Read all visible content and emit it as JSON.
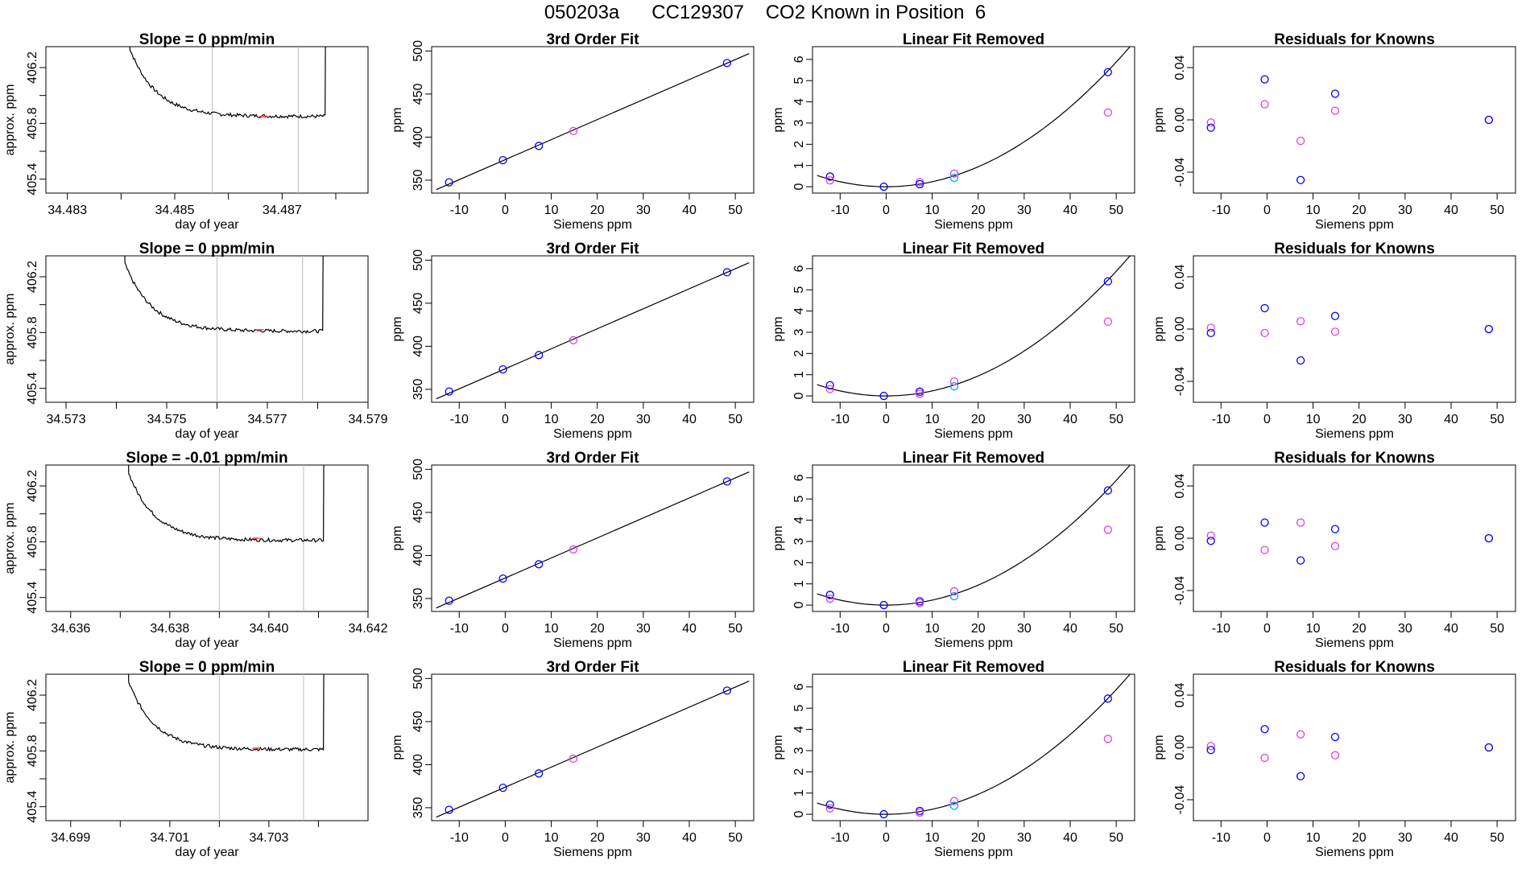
{
  "page": {
    "title": "050203a      CC129307    CO2 Known in Position  6"
  },
  "colors": {
    "axis": "#000000",
    "trace": "#000000",
    "vline": "#bebebe",
    "blue": "#0000ff",
    "magenta": "#e040e0",
    "cyan": "#00aaee",
    "red": "#ff4444"
  },
  "chart_data": [
    {
      "type": "line",
      "row": 0,
      "panel": "trace",
      "title": "Slope =  0  ppm/min",
      "xlabel": "day of year",
      "ylabel": "approx. ppm",
      "xlim": [
        34.4826,
        34.4886
      ],
      "xticks": [
        34.483,
        34.484,
        34.485,
        34.486,
        34.487,
        34.488
      ],
      "xtick_labels": [
        "34.483",
        "",
        "34.485",
        "",
        "34.487",
        ""
      ],
      "ylim": [
        405.3,
        406.35
      ],
      "yticks": [
        405.4,
        405.6,
        405.8,
        406.0,
        406.2
      ],
      "ytick_labels": [
        "405.4",
        "",
        "405.8",
        "",
        "406.2"
      ],
      "level": 405.85,
      "start": 34.4841,
      "end": 34.4878,
      "vlines": [
        34.4857,
        34.4873
      ],
      "red_mark": [
        34.48665,
        405.849
      ]
    },
    {
      "type": "scatter",
      "row": 0,
      "panel": "fit",
      "title": "3rd Order Fit",
      "xlabel": "Siemens ppm",
      "ylabel": "ppm",
      "xlim": [
        -16,
        54
      ],
      "ylim": [
        335,
        505
      ],
      "xticks": [
        -10,
        0,
        10,
        20,
        30,
        40,
        50
      ],
      "yticks": [
        350,
        400,
        450,
        500
      ],
      "fit_line": [
        [
          -15,
          339
        ],
        [
          53,
          497
        ]
      ],
      "points": [
        {
          "x": -12.2,
          "y": 347.5,
          "c": "blue"
        },
        {
          "x": -0.5,
          "y": 373.2,
          "c": "blue"
        },
        {
          "x": 7.3,
          "y": 389.8,
          "c": "blue"
        },
        {
          "x": 14.8,
          "y": 407.0,
          "c": "magenta"
        },
        {
          "x": 48.2,
          "y": 486.0,
          "c": "blue"
        }
      ]
    },
    {
      "type": "scatter",
      "row": 0,
      "panel": "linear",
      "title": "Linear Fit Removed",
      "xlabel": "Siemens ppm",
      "ylabel": "ppm",
      "xlim": [
        -16,
        54
      ],
      "ylim": [
        -0.3,
        6.6
      ],
      "xticks": [
        -10,
        0,
        10,
        20,
        30,
        40,
        50
      ],
      "yticks": [
        0,
        1,
        2,
        3,
        4,
        5,
        6
      ],
      "curve_a": 0.00235,
      "curve_b": 0.0003,
      "curve_x": [
        -15,
        53
      ],
      "points": [
        {
          "x": -12.2,
          "y": 0.48,
          "c": "blue"
        },
        {
          "x": -12.2,
          "y": 0.3,
          "c": "magenta"
        },
        {
          "x": -0.5,
          "y": 0.0,
          "c": "blue"
        },
        {
          "x": 7.3,
          "y": 0.22,
          "c": "magenta"
        },
        {
          "x": 7.3,
          "y": 0.12,
          "c": "blue"
        },
        {
          "x": 14.8,
          "y": 0.62,
          "c": "magenta"
        },
        {
          "x": 14.8,
          "y": 0.42,
          "c": "cyan"
        },
        {
          "x": 48.2,
          "y": 5.4,
          "c": "blue"
        },
        {
          "x": 48.2,
          "y": 3.5,
          "c": "magenta"
        }
      ]
    },
    {
      "type": "scatter",
      "row": 0,
      "panel": "residuals",
      "title": "Residuals for Knowns",
      "xlabel": "Siemens ppm",
      "ylabel": "ppm",
      "xlim": [
        -16,
        54
      ],
      "ylim": [
        -0.056,
        0.056
      ],
      "xticks": [
        -10,
        0,
        10,
        20,
        30,
        40,
        50
      ],
      "yticks": [
        -0.04,
        0.0,
        0.04
      ],
      "ytick_labels": [
        "-0.04",
        "0.00",
        "0.04"
      ],
      "points": [
        {
          "x": -12.2,
          "y": -0.002,
          "c": "magenta"
        },
        {
          "x": -12.2,
          "y": -0.006,
          "c": "blue"
        },
        {
          "x": -0.5,
          "y": 0.031,
          "c": "blue"
        },
        {
          "x": -0.5,
          "y": 0.012,
          "c": "magenta"
        },
        {
          "x": 7.3,
          "y": -0.016,
          "c": "magenta"
        },
        {
          "x": 7.3,
          "y": -0.046,
          "c": "blue"
        },
        {
          "x": 14.8,
          "y": 0.02,
          "c": "blue"
        },
        {
          "x": 14.8,
          "y": 0.007,
          "c": "magenta"
        },
        {
          "x": 48.2,
          "y": 0.0,
          "c": "magenta"
        },
        {
          "x": 48.2,
          "y": 0.0,
          "c": "blue"
        }
      ]
    },
    {
      "type": "line",
      "row": 1,
      "panel": "trace",
      "title": "Slope =  0  ppm/min",
      "xlabel": "day of year",
      "ylabel": "approx. ppm",
      "xlim": [
        34.5726,
        34.579
      ],
      "xticks": [
        34.573,
        34.574,
        34.575,
        34.576,
        34.577,
        34.578,
        34.579
      ],
      "xtick_labels": [
        "34.573",
        "",
        "34.575",
        "",
        "34.577",
        "",
        "34.579"
      ],
      "ylim": [
        405.3,
        406.35
      ],
      "yticks": [
        405.4,
        405.6,
        405.8,
        406.0,
        406.2
      ],
      "ytick_labels": [
        "405.4",
        "",
        "405.8",
        "",
        "406.2"
      ],
      "level": 405.81,
      "start": 34.5741,
      "end": 34.5781,
      "vlines": [
        34.576,
        34.5777
      ],
      "red_mark": [
        34.57685,
        405.82
      ]
    },
    {
      "type": "scatter",
      "row": 1,
      "panel": "fit",
      "title": "3rd Order Fit",
      "xlabel": "Siemens ppm",
      "ylabel": "ppm",
      "xlim": [
        -16,
        54
      ],
      "ylim": [
        335,
        505
      ],
      "xticks": [
        -10,
        0,
        10,
        20,
        30,
        40,
        50
      ],
      "yticks": [
        350,
        400,
        450,
        500
      ],
      "fit_line": [
        [
          -15,
          339
        ],
        [
          53,
          497
        ]
      ],
      "points": [
        {
          "x": -12.2,
          "y": 347.5,
          "c": "blue"
        },
        {
          "x": -0.5,
          "y": 373.2,
          "c": "blue"
        },
        {
          "x": 7.3,
          "y": 389.8,
          "c": "blue"
        },
        {
          "x": 14.8,
          "y": 407.0,
          "c": "magenta"
        },
        {
          "x": 48.2,
          "y": 486.0,
          "c": "blue"
        }
      ]
    },
    {
      "type": "scatter",
      "row": 1,
      "panel": "linear",
      "title": "Linear Fit Removed",
      "xlabel": "Siemens ppm",
      "ylabel": "ppm",
      "xlim": [
        -16,
        54
      ],
      "ylim": [
        -0.3,
        6.6
      ],
      "xticks": [
        -10,
        0,
        10,
        20,
        30,
        40,
        50
      ],
      "yticks": [
        0,
        1,
        2,
        3,
        4,
        5,
        6
      ],
      "curve_a": 0.00235,
      "curve_b": 0.0003,
      "curve_x": [
        -15,
        53
      ],
      "points": [
        {
          "x": -12.2,
          "y": 0.5,
          "c": "blue"
        },
        {
          "x": -12.2,
          "y": 0.32,
          "c": "magenta"
        },
        {
          "x": -0.5,
          "y": 0.0,
          "c": "blue"
        },
        {
          "x": 7.3,
          "y": 0.2,
          "c": "blue"
        },
        {
          "x": 7.3,
          "y": 0.1,
          "c": "magenta"
        },
        {
          "x": 14.8,
          "y": 0.68,
          "c": "magenta"
        },
        {
          "x": 14.8,
          "y": 0.45,
          "c": "cyan"
        },
        {
          "x": 48.2,
          "y": 5.4,
          "c": "blue"
        },
        {
          "x": 48.2,
          "y": 3.5,
          "c": "magenta"
        }
      ]
    },
    {
      "type": "scatter",
      "row": 1,
      "panel": "residuals",
      "title": "Residuals for Knowns",
      "xlabel": "Siemens ppm",
      "ylabel": "ppm",
      "xlim": [
        -16,
        54
      ],
      "ylim": [
        -0.056,
        0.056
      ],
      "xticks": [
        -10,
        0,
        10,
        20,
        30,
        40,
        50
      ],
      "yticks": [
        -0.04,
        0.0,
        0.04
      ],
      "ytick_labels": [
        "-0.04",
        "0.00",
        "0.04"
      ],
      "points": [
        {
          "x": -12.2,
          "y": 0.001,
          "c": "magenta"
        },
        {
          "x": -12.2,
          "y": -0.003,
          "c": "blue"
        },
        {
          "x": -0.5,
          "y": 0.016,
          "c": "blue"
        },
        {
          "x": -0.5,
          "y": -0.003,
          "c": "magenta"
        },
        {
          "x": 7.3,
          "y": 0.006,
          "c": "magenta"
        },
        {
          "x": 7.3,
          "y": -0.024,
          "c": "blue"
        },
        {
          "x": 14.8,
          "y": 0.01,
          "c": "blue"
        },
        {
          "x": 14.8,
          "y": -0.002,
          "c": "magenta"
        },
        {
          "x": 48.2,
          "y": 0.0,
          "c": "magenta"
        },
        {
          "x": 48.2,
          "y": 0.0,
          "c": "blue"
        }
      ]
    },
    {
      "type": "line",
      "row": 2,
      "panel": "trace",
      "title": "Slope =  -0.01  ppm/min",
      "xlabel": "day of year",
      "ylabel": "approx. ppm",
      "xlim": [
        34.6355,
        34.642
      ],
      "xticks": [
        34.636,
        34.637,
        34.638,
        34.639,
        34.64,
        34.641,
        34.642
      ],
      "xtick_labels": [
        "34.636",
        "",
        "34.638",
        "",
        "34.640",
        "",
        "34.642"
      ],
      "ylim": [
        405.3,
        406.35
      ],
      "yticks": [
        405.4,
        405.6,
        405.8,
        406.0,
        406.2
      ],
      "ytick_labels": [
        "405.4",
        "",
        "405.8",
        "",
        "406.2"
      ],
      "level": 405.81,
      "start": 34.6371,
      "end": 34.6411,
      "vlines": [
        34.639,
        34.6407
      ],
      "red_mark": [
        34.63975,
        405.825
      ]
    },
    {
      "type": "scatter",
      "row": 2,
      "panel": "fit",
      "title": "3rd Order Fit",
      "xlabel": "Siemens ppm",
      "ylabel": "ppm",
      "xlim": [
        -16,
        54
      ],
      "ylim": [
        335,
        505
      ],
      "xticks": [
        -10,
        0,
        10,
        20,
        30,
        40,
        50
      ],
      "yticks": [
        350,
        400,
        450,
        500
      ],
      "fit_line": [
        [
          -15,
          339
        ],
        [
          53,
          497
        ]
      ],
      "points": [
        {
          "x": -12.2,
          "y": 347.5,
          "c": "blue"
        },
        {
          "x": -0.5,
          "y": 373.2,
          "c": "blue"
        },
        {
          "x": 7.3,
          "y": 389.8,
          "c": "blue"
        },
        {
          "x": 14.8,
          "y": 407.0,
          "c": "magenta"
        },
        {
          "x": 48.2,
          "y": 486.0,
          "c": "blue"
        }
      ]
    },
    {
      "type": "scatter",
      "row": 2,
      "panel": "linear",
      "title": "Linear Fit Removed",
      "xlabel": "Siemens ppm",
      "ylabel": "ppm",
      "xlim": [
        -16,
        54
      ],
      "ylim": [
        -0.3,
        6.6
      ],
      "xticks": [
        -10,
        0,
        10,
        20,
        30,
        40,
        50
      ],
      "yticks": [
        0,
        1,
        2,
        3,
        4,
        5,
        6
      ],
      "curve_a": 0.00235,
      "curve_b": 0.0003,
      "curve_x": [
        -15,
        53
      ],
      "points": [
        {
          "x": -12.2,
          "y": 0.48,
          "c": "blue"
        },
        {
          "x": -12.2,
          "y": 0.3,
          "c": "magenta"
        },
        {
          "x": -0.5,
          "y": 0.0,
          "c": "blue"
        },
        {
          "x": 7.3,
          "y": 0.18,
          "c": "blue"
        },
        {
          "x": 7.3,
          "y": 0.1,
          "c": "magenta"
        },
        {
          "x": 14.8,
          "y": 0.65,
          "c": "magenta"
        },
        {
          "x": 14.8,
          "y": 0.42,
          "c": "cyan"
        },
        {
          "x": 48.2,
          "y": 5.4,
          "c": "blue"
        },
        {
          "x": 48.2,
          "y": 3.55,
          "c": "magenta"
        }
      ]
    },
    {
      "type": "scatter",
      "row": 2,
      "panel": "residuals",
      "title": "Residuals for Knowns",
      "xlabel": "Siemens ppm",
      "ylabel": "ppm",
      "xlim": [
        -16,
        54
      ],
      "ylim": [
        -0.056,
        0.056
      ],
      "xticks": [
        -10,
        0,
        10,
        20,
        30,
        40,
        50
      ],
      "yticks": [
        -0.04,
        0.0,
        0.04
      ],
      "ytick_labels": [
        "-0.04",
        "0.00",
        "0.04"
      ],
      "points": [
        {
          "x": -12.2,
          "y": 0.002,
          "c": "magenta"
        },
        {
          "x": -12.2,
          "y": -0.002,
          "c": "blue"
        },
        {
          "x": -0.5,
          "y": 0.012,
          "c": "blue"
        },
        {
          "x": -0.5,
          "y": -0.009,
          "c": "magenta"
        },
        {
          "x": 7.3,
          "y": 0.012,
          "c": "magenta"
        },
        {
          "x": 7.3,
          "y": -0.017,
          "c": "blue"
        },
        {
          "x": 14.8,
          "y": 0.007,
          "c": "blue"
        },
        {
          "x": 14.8,
          "y": -0.006,
          "c": "magenta"
        },
        {
          "x": 48.2,
          "y": 0.0,
          "c": "magenta"
        },
        {
          "x": 48.2,
          "y": 0.0,
          "c": "blue"
        }
      ]
    },
    {
      "type": "line",
      "row": 3,
      "panel": "trace",
      "title": "Slope =  0  ppm/min",
      "xlabel": "day of year",
      "ylabel": "approx. ppm",
      "xlim": [
        34.6985,
        34.705
      ],
      "xticks": [
        34.699,
        34.7,
        34.701,
        34.702,
        34.703,
        34.704
      ],
      "xtick_labels": [
        "34.699",
        "",
        "34.701",
        "",
        "34.703",
        ""
      ],
      "ylim": [
        405.3,
        406.35
      ],
      "yticks": [
        405.4,
        405.6,
        405.8,
        406.0,
        406.2
      ],
      "ytick_labels": [
        "405.4",
        "",
        "405.8",
        "",
        "406.2"
      ],
      "level": 405.81,
      "start": 34.7001,
      "end": 34.7041,
      "vlines": [
        34.702,
        34.7037
      ],
      "red_mark": [
        34.70275,
        405.82
      ]
    },
    {
      "type": "scatter",
      "row": 3,
      "panel": "fit",
      "title": "3rd Order Fit",
      "xlabel": "Siemens ppm",
      "ylabel": "ppm",
      "xlim": [
        -16,
        54
      ],
      "ylim": [
        335,
        505
      ],
      "xticks": [
        -10,
        0,
        10,
        20,
        30,
        40,
        50
      ],
      "yticks": [
        350,
        400,
        450,
        500
      ],
      "fit_line": [
        [
          -15,
          339
        ],
        [
          53,
          497
        ]
      ],
      "points": [
        {
          "x": -12.2,
          "y": 347.5,
          "c": "blue"
        },
        {
          "x": -0.5,
          "y": 373.2,
          "c": "blue"
        },
        {
          "x": 7.3,
          "y": 389.8,
          "c": "blue"
        },
        {
          "x": 14.8,
          "y": 407.0,
          "c": "magenta"
        },
        {
          "x": 48.2,
          "y": 486.0,
          "c": "blue"
        }
      ]
    },
    {
      "type": "scatter",
      "row": 3,
      "panel": "linear",
      "title": "Linear Fit Removed",
      "xlabel": "Siemens ppm",
      "ylabel": "ppm",
      "xlim": [
        -16,
        54
      ],
      "ylim": [
        -0.3,
        6.6
      ],
      "xticks": [
        -10,
        0,
        10,
        20,
        30,
        40,
        50
      ],
      "yticks": [
        0,
        1,
        2,
        3,
        4,
        5,
        6
      ],
      "curve_a": 0.00235,
      "curve_b": 0.0003,
      "curve_x": [
        -15,
        53
      ],
      "points": [
        {
          "x": -12.2,
          "y": 0.45,
          "c": "blue"
        },
        {
          "x": -12.2,
          "y": 0.28,
          "c": "magenta"
        },
        {
          "x": -0.5,
          "y": 0.0,
          "c": "blue"
        },
        {
          "x": 7.3,
          "y": 0.16,
          "c": "blue"
        },
        {
          "x": 7.3,
          "y": 0.08,
          "c": "magenta"
        },
        {
          "x": 14.8,
          "y": 0.62,
          "c": "magenta"
        },
        {
          "x": 14.8,
          "y": 0.4,
          "c": "cyan"
        },
        {
          "x": 48.2,
          "y": 5.45,
          "c": "blue"
        },
        {
          "x": 48.2,
          "y": 3.55,
          "c": "magenta"
        }
      ]
    },
    {
      "type": "scatter",
      "row": 3,
      "panel": "residuals",
      "title": "Residuals for Knowns",
      "xlabel": "Siemens ppm",
      "ylabel": "ppm",
      "xlim": [
        -16,
        54
      ],
      "ylim": [
        -0.056,
        0.056
      ],
      "xticks": [
        -10,
        0,
        10,
        20,
        30,
        40,
        50
      ],
      "yticks": [
        -0.04,
        0.0,
        0.04
      ],
      "ytick_labels": [
        "-0.04",
        "0.00",
        "0.04"
      ],
      "points": [
        {
          "x": -12.2,
          "y": 0.001,
          "c": "magenta"
        },
        {
          "x": -12.2,
          "y": -0.002,
          "c": "blue"
        },
        {
          "x": -0.5,
          "y": 0.014,
          "c": "blue"
        },
        {
          "x": -0.5,
          "y": -0.008,
          "c": "magenta"
        },
        {
          "x": 7.3,
          "y": 0.01,
          "c": "magenta"
        },
        {
          "x": 7.3,
          "y": -0.022,
          "c": "blue"
        },
        {
          "x": 14.8,
          "y": 0.008,
          "c": "blue"
        },
        {
          "x": 14.8,
          "y": -0.006,
          "c": "magenta"
        },
        {
          "x": 48.2,
          "y": 0.0,
          "c": "magenta"
        },
        {
          "x": 48.2,
          "y": 0.0,
          "c": "blue"
        }
      ]
    }
  ]
}
